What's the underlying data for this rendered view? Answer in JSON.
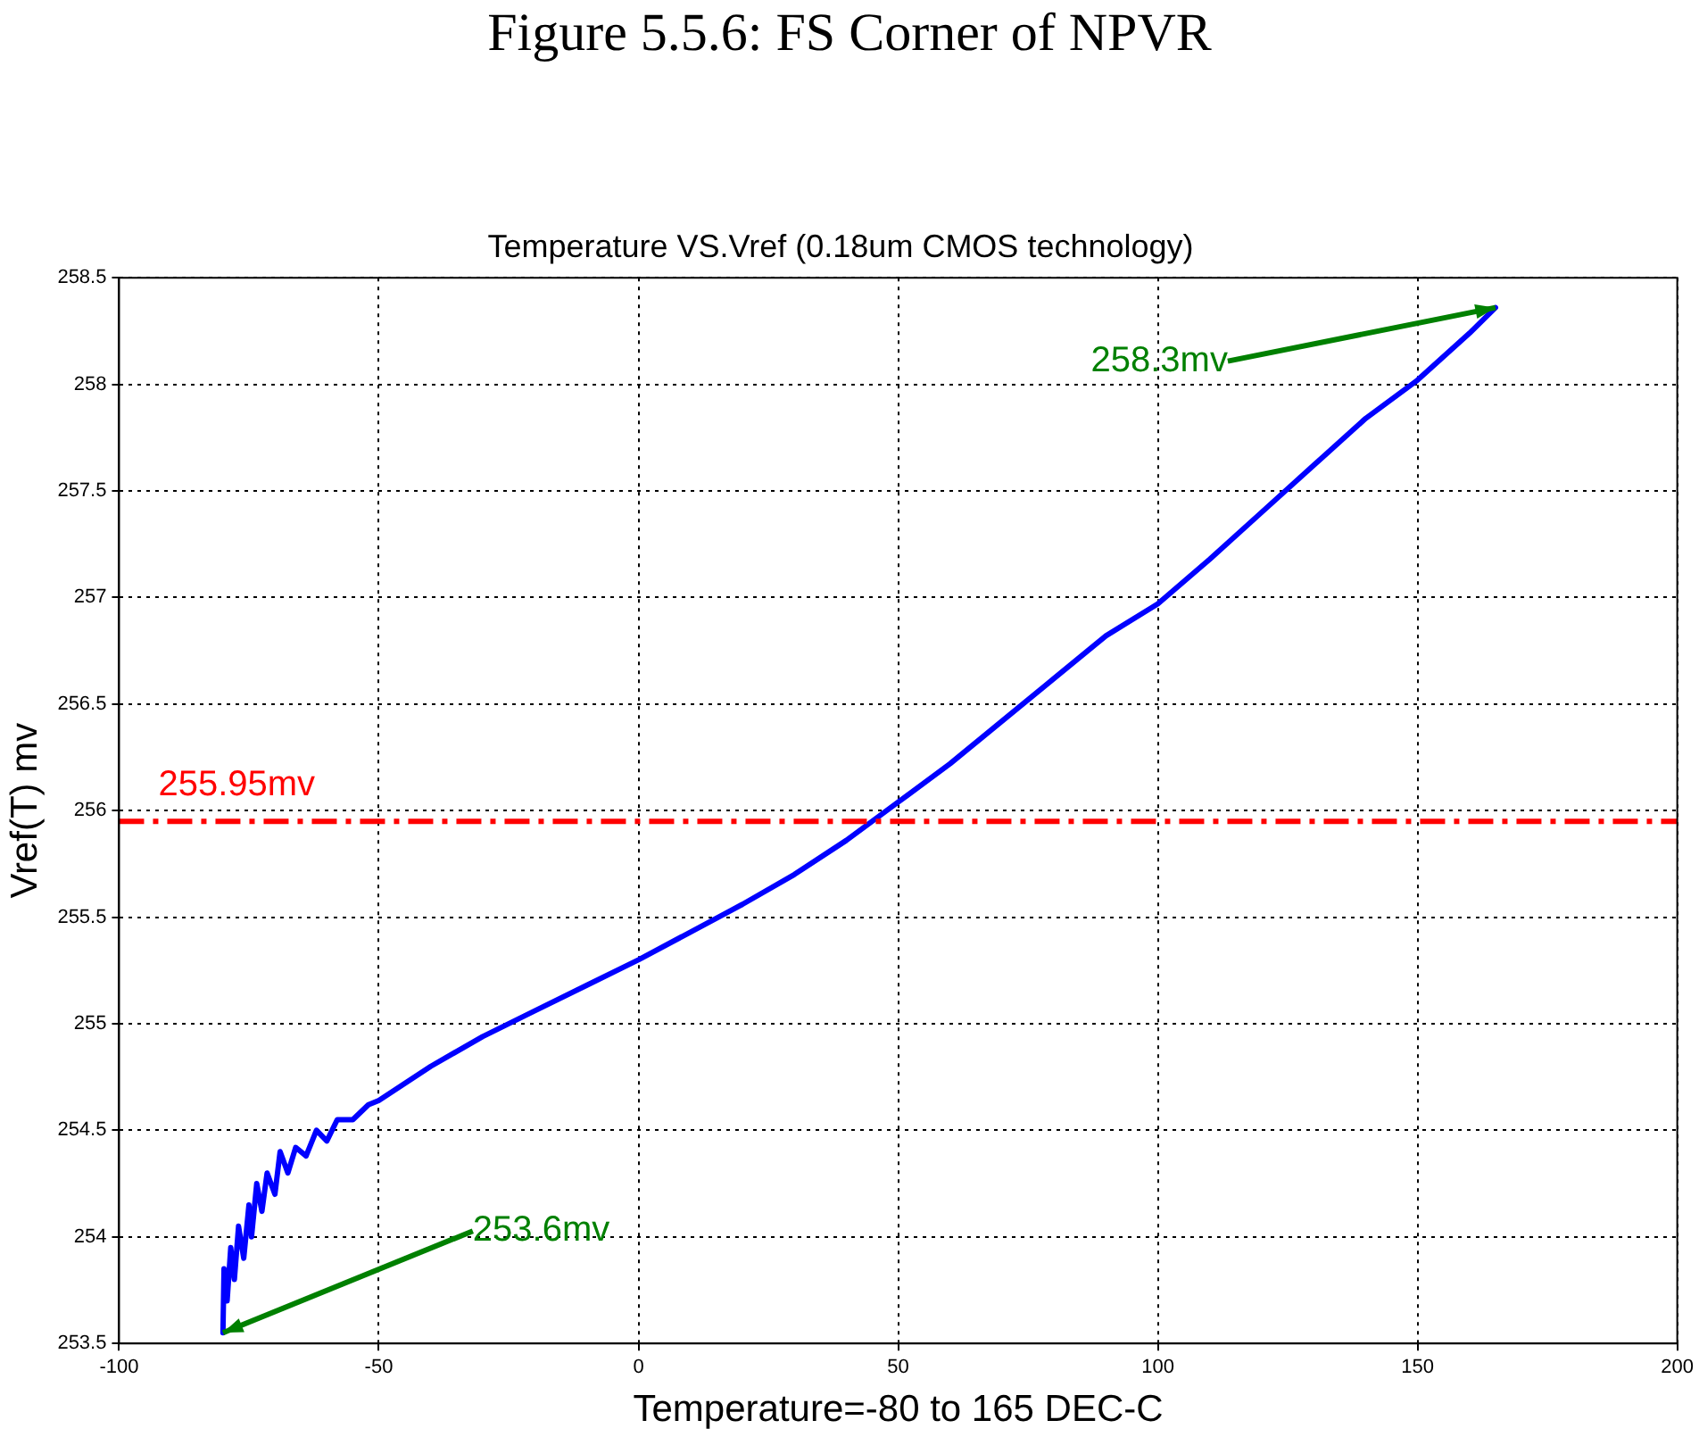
{
  "chart_data": {
    "type": "line",
    "title": "Temperature VS.Vref (0.18um CMOS technology)",
    "xlabel": "Temperature=-80 to 165 DEC-C",
    "ylabel": "Vref(T) mv",
    "x": [
      -80,
      -79.8,
      -79.2,
      -78.5,
      -77.8,
      -77,
      -76,
      -75,
      -74.5,
      -73.5,
      -72.5,
      -71.5,
      -70,
      -69,
      -67.5,
      -66,
      -64,
      -62,
      -60,
      -58,
      -55,
      -52,
      -50,
      -40,
      -30,
      -20,
      -10,
      0,
      10,
      20,
      30,
      40,
      50,
      60,
      70,
      80,
      90,
      100,
      110,
      120,
      130,
      140,
      150,
      160,
      165
    ],
    "series": [
      {
        "color": "#0000ff",
        "values": [
          253.55,
          253.85,
          253.7,
          253.95,
          253.8,
          254.05,
          253.9,
          254.15,
          254.0,
          254.25,
          254.12,
          254.3,
          254.2,
          254.4,
          254.3,
          254.42,
          254.38,
          254.5,
          254.45,
          254.55,
          254.55,
          254.62,
          254.64,
          254.8,
          254.94,
          255.06,
          255.18,
          255.3,
          255.43,
          255.56,
          255.7,
          255.86,
          256.04,
          256.22,
          256.42,
          256.62,
          256.82,
          256.97,
          257.18,
          257.4,
          257.62,
          257.84,
          258.02,
          258.24,
          258.36
        ]
      }
    ],
    "xlim": [
      -100,
      200
    ],
    "xticks": [
      -100,
      -50,
      0,
      50,
      100,
      150,
      200
    ],
    "ylim": [
      253.5,
      258.5
    ],
    "yticks": [
      253.5,
      254,
      254.5,
      255,
      255.5,
      256,
      256.5,
      257,
      257.5,
      258,
      258.5
    ],
    "grid": true,
    "marker": "none",
    "line_style": "solid",
    "ref_lines": [
      {
        "axis": "y",
        "value": 255.95,
        "label": "255.95mv",
        "color": "#ff0000",
        "line_style": "dashed"
      }
    ],
    "annotations": [
      "Figure 5.5.6: FS Corner of NPVR",
      {
        "text": "258.3mv",
        "x": 165,
        "y": 258.36
      },
      {
        "text": "253.6mv",
        "x": -80,
        "y": 253.55
      }
    ]
  }
}
